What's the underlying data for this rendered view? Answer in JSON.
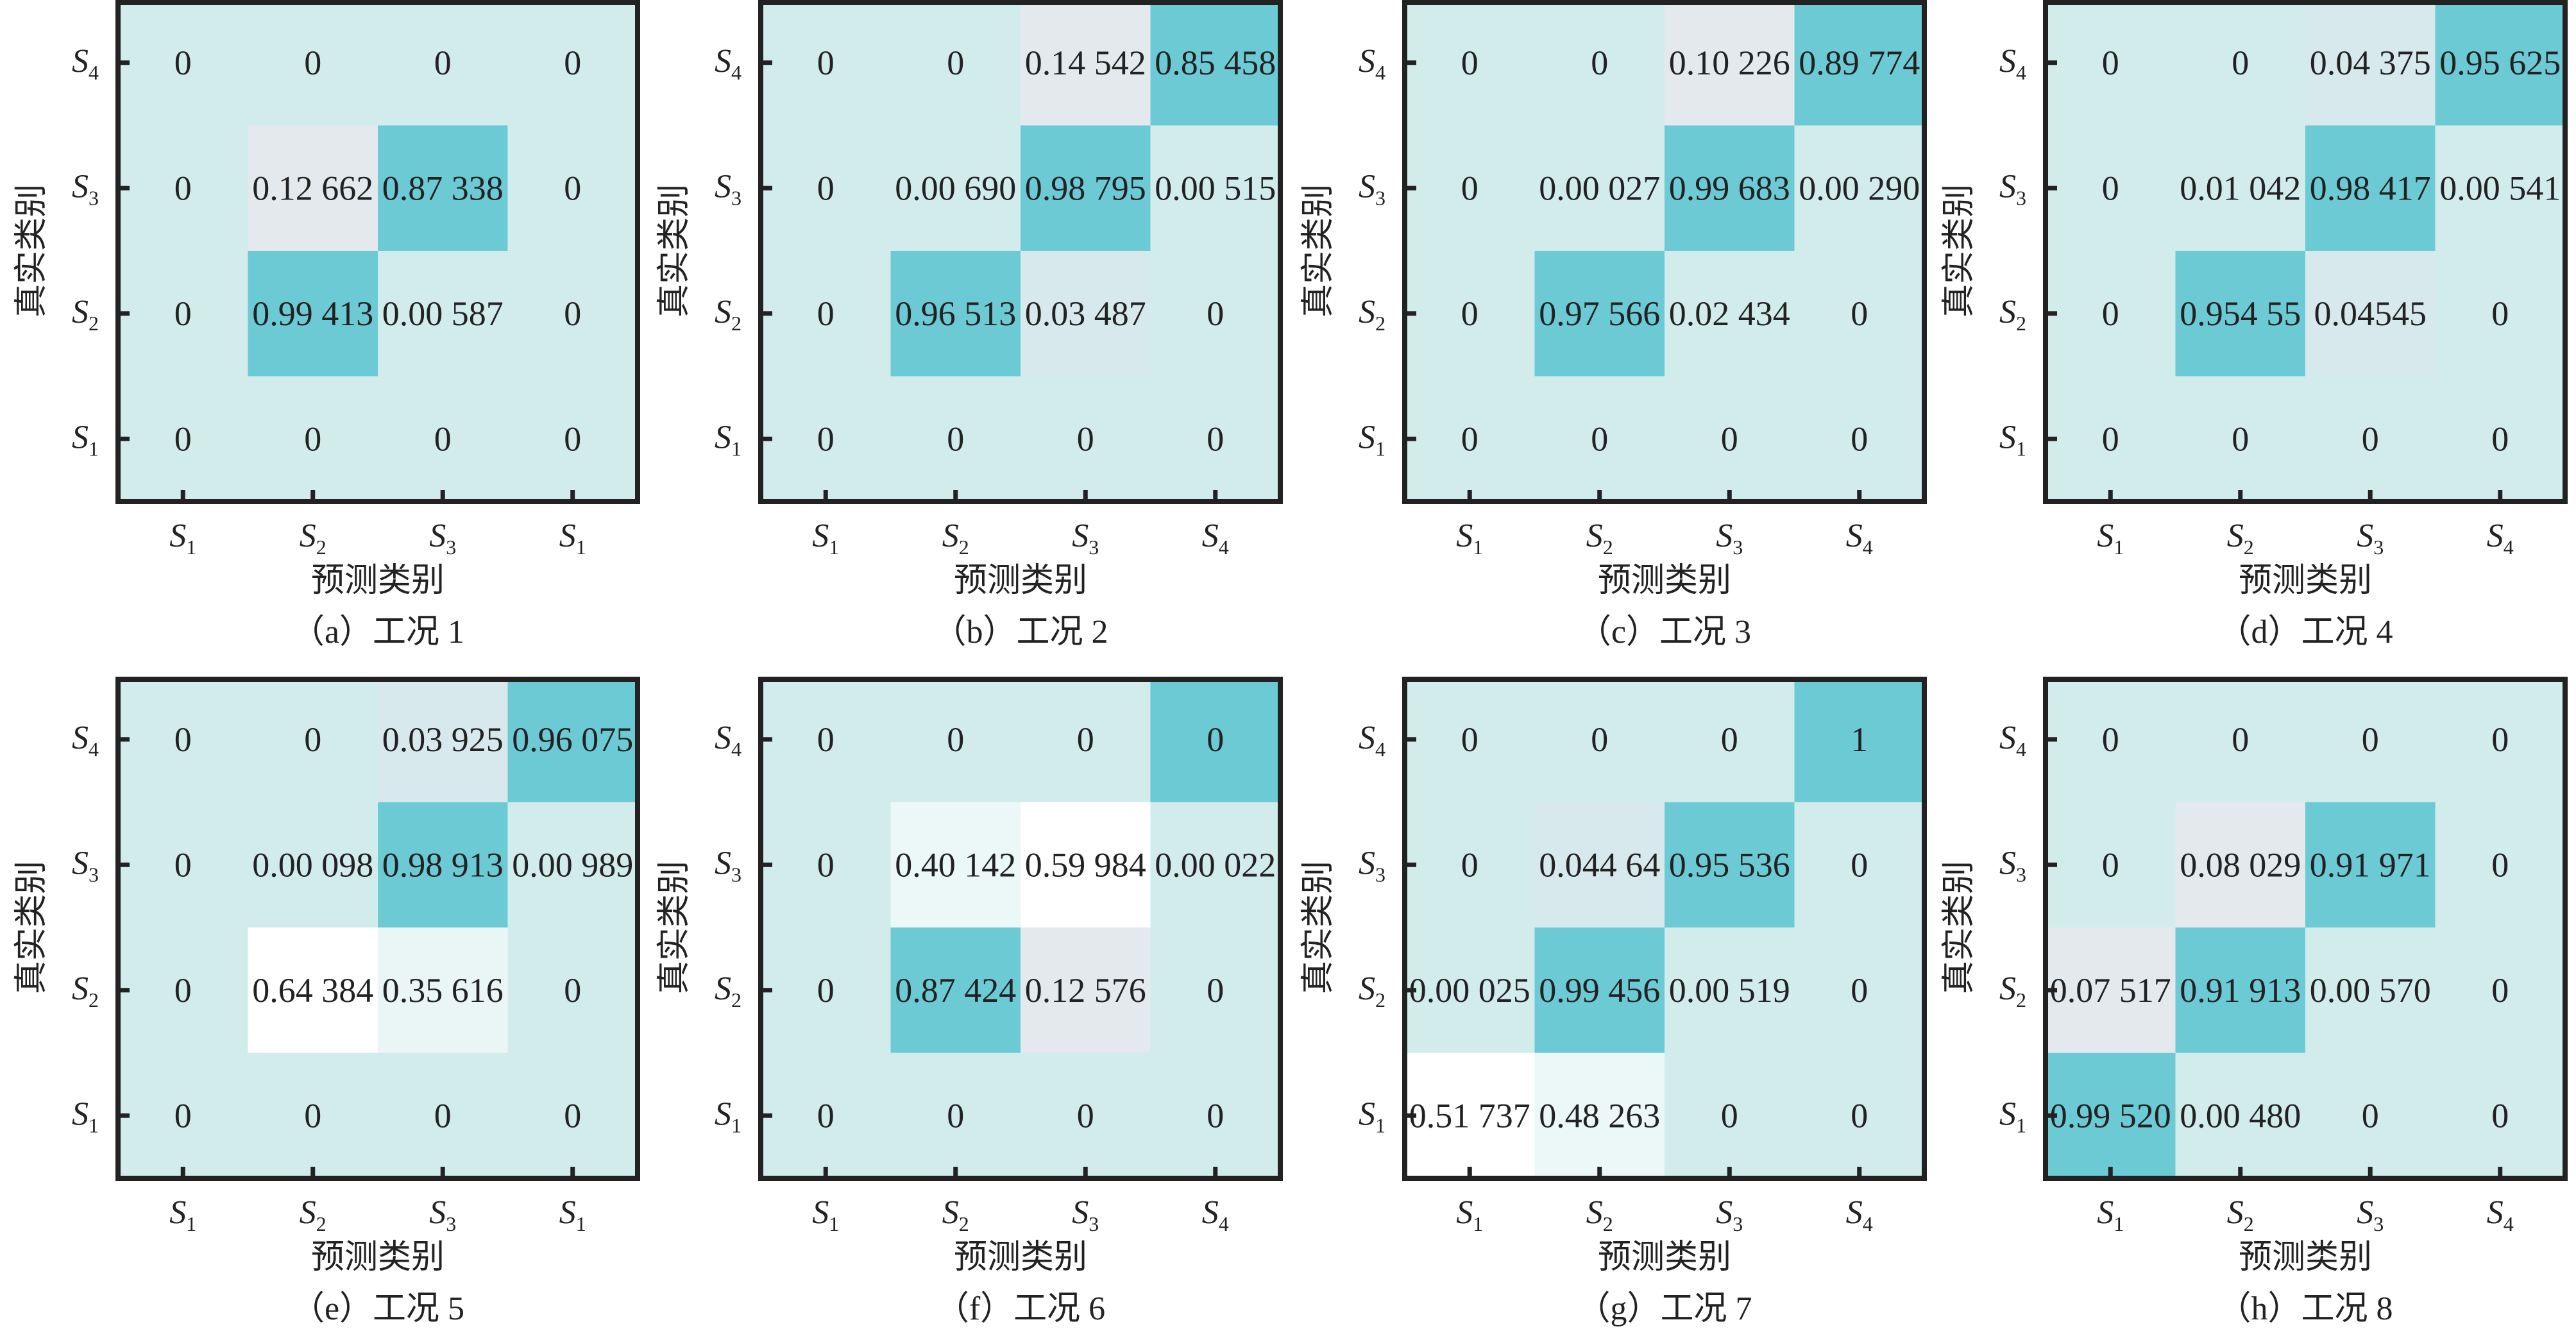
{
  "chart_data": [
    {
      "type": "heatmap",
      "caption": "（a）工况 1",
      "xlabel": "预测类别",
      "ylabel": "真实类别",
      "xticks": [
        "S|1",
        "S|2",
        "S|3",
        "S|1"
      ],
      "yticks": [
        "S|4",
        "S|3",
        "S|2",
        "S|1"
      ],
      "cells": [
        [
          "0",
          "0",
          "0",
          "0"
        ],
        [
          "0",
          "0.12 662",
          "0.87 338",
          "0"
        ],
        [
          "0",
          "0.99 413",
          "0.00 587",
          "0"
        ],
        [
          "0",
          "0",
          "0",
          "0"
        ]
      ]
    },
    {
      "type": "heatmap",
      "caption": "（b）工况 2",
      "xlabel": "预测类别",
      "ylabel": "真实类别",
      "xticks": [
        "S|1",
        "S|2",
        "S|3",
        "S|4"
      ],
      "yticks": [
        "S|4",
        "S|3",
        "S|2",
        "S|1"
      ],
      "cells": [
        [
          "0",
          "0",
          "0.14 542",
          "0.85 458"
        ],
        [
          "0",
          "0.00 690",
          "0.98 795",
          "0.00 515"
        ],
        [
          "0",
          "0.96 513",
          "0.03 487",
          "0"
        ],
        [
          "0",
          "0",
          "0",
          "0"
        ]
      ]
    },
    {
      "type": "heatmap",
      "caption": "（c）工况 3",
      "xlabel": "预测类别",
      "ylabel": "真实类别",
      "xticks": [
        "S|1",
        "S|2",
        "S|3",
        "S|4"
      ],
      "yticks": [
        "S|4",
        "S|3",
        "S|2",
        "S|1"
      ],
      "cells": [
        [
          "0",
          "0",
          "0.10 226",
          "0.89 774"
        ],
        [
          "0",
          "0.00 027",
          "0.99 683",
          "0.00 290"
        ],
        [
          "0",
          "0.97 566",
          "0.02 434",
          "0"
        ],
        [
          "0",
          "0",
          "0",
          "0"
        ]
      ]
    },
    {
      "type": "heatmap",
      "caption": "（d）工况 4",
      "xlabel": "预测类别",
      "ylabel": "真实类别",
      "xticks": [
        "S|1",
        "S|2",
        "S|3",
        "S|4"
      ],
      "yticks": [
        "S|4",
        "S|3",
        "S|2",
        "S|1"
      ],
      "cells": [
        [
          "0",
          "0",
          "0.04 375",
          "0.95 625"
        ],
        [
          "0",
          "0.01 042",
          "0.98 417",
          "0.00 541"
        ],
        [
          "0",
          "0.954 55",
          "0.04545",
          "0"
        ],
        [
          "0",
          "0",
          "0",
          "0"
        ]
      ]
    },
    {
      "type": "heatmap",
      "caption": "（e）工况 5",
      "xlabel": "预测类别",
      "ylabel": "真实类别",
      "xticks": [
        "S|1",
        "S|2",
        "S|3",
        "S|1"
      ],
      "yticks": [
        "S|4",
        "S|3",
        "S|2",
        "S|1"
      ],
      "cells": [
        [
          "0",
          "0",
          "0.03 925",
          "0.96 075"
        ],
        [
          "0",
          "0.00 098",
          "0.98 913",
          "0.00 989"
        ],
        [
          "0",
          "0.64 384",
          "0.35 616",
          "0"
        ],
        [
          "0",
          "0",
          "0",
          "0"
        ]
      ]
    },
    {
      "type": "heatmap",
      "caption": "（f）工况 6",
      "xlabel": "预测类别",
      "ylabel": "真实类别",
      "xticks": [
        "S|1",
        "S|2",
        "S|3",
        "S|4"
      ],
      "yticks": [
        "S|4",
        "S|3",
        "S|2",
        "S|1"
      ],
      "cells": [
        [
          "0",
          "0",
          "0",
          "0"
        ],
        [
          "0",
          "0.40 142",
          "0.59 984",
          "0.00 022"
        ],
        [
          "0",
          "0.87 424",
          "0.12 576",
          "0"
        ],
        [
          "0",
          "0",
          "0",
          "0"
        ]
      ],
      "color_overrides": [
        {
          "row": 0,
          "col": 3,
          "color": "#6ccad5"
        }
      ]
    },
    {
      "type": "heatmap",
      "caption": "（g）工况 7",
      "xlabel": "预测类别",
      "ylabel": "真实类别",
      "xticks": [
        "S|1",
        "S|2",
        "S|3",
        "S|4"
      ],
      "yticks": [
        "S|4",
        "S|3",
        "S|2",
        "S|1"
      ],
      "cells": [
        [
          "0",
          "0",
          "0",
          "1"
        ],
        [
          "0",
          "0.044 64",
          "0.95 536",
          "0"
        ],
        [
          "0.00 025",
          "0.99 456",
          "0.00 519",
          "0"
        ],
        [
          "0.51 737",
          "0.48 263",
          "0",
          "0"
        ]
      ]
    },
    {
      "type": "heatmap",
      "caption": "（h）工况 8",
      "xlabel": "预测类别",
      "ylabel": "真实类别",
      "xticks": [
        "S|1",
        "S|2",
        "S|3",
        "S|4"
      ],
      "yticks": [
        "S|4",
        "S|3",
        "S|2",
        "S|1"
      ],
      "cells": [
        [
          "0",
          "0",
          "0",
          "0"
        ],
        [
          "0",
          "0.08 029",
          "0.91 971",
          "0"
        ],
        [
          "0.07 517",
          "0.91 913",
          "0.00 570",
          "0"
        ],
        [
          "0.99 520",
          "0.00 480",
          "0",
          "0"
        ]
      ]
    }
  ],
  "colors": {
    "low": "#d2ecec",
    "high": "#6ccad5",
    "mid": "#ffffff",
    "border": "#222222"
  }
}
